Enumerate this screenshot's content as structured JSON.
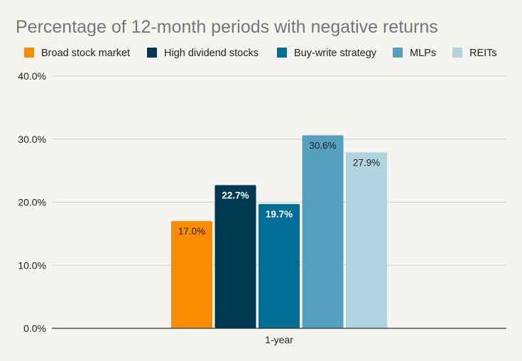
{
  "chart_data": {
    "type": "bar",
    "title": "Percentage of 12-month periods with negative returns",
    "categories": [
      "1-year"
    ],
    "series": [
      {
        "name": "Broad stock market",
        "values": [
          17.0
        ],
        "label": "17.0%",
        "color": "#fa8c00",
        "label_color": "#222222"
      },
      {
        "name": "High dividend stocks",
        "values": [
          22.7
        ],
        "label": "22.7%",
        "color": "#003a52",
        "label_color": "#ffffff"
      },
      {
        "name": "Buy-write strategy",
        "values": [
          19.7
        ],
        "label": "19.7%",
        "color": "#006e96",
        "label_color": "#ffffff"
      },
      {
        "name": "MLPs",
        "values": [
          30.6
        ],
        "label": "30.6%",
        "color": "#55a0bf",
        "label_color": "#222222"
      },
      {
        "name": "REITs",
        "values": [
          27.9
        ],
        "label": "27.9%",
        "color": "#b0d4e0",
        "label_color": "#222222"
      }
    ],
    "ylim": [
      0,
      40
    ],
    "yticks": [
      0,
      10,
      20,
      30,
      40
    ],
    "ytick_labels": [
      "0.0%",
      "10.0%",
      "20.0%",
      "30.0%",
      "40.0%"
    ],
    "legend_position": "top-left",
    "grid": true
  }
}
